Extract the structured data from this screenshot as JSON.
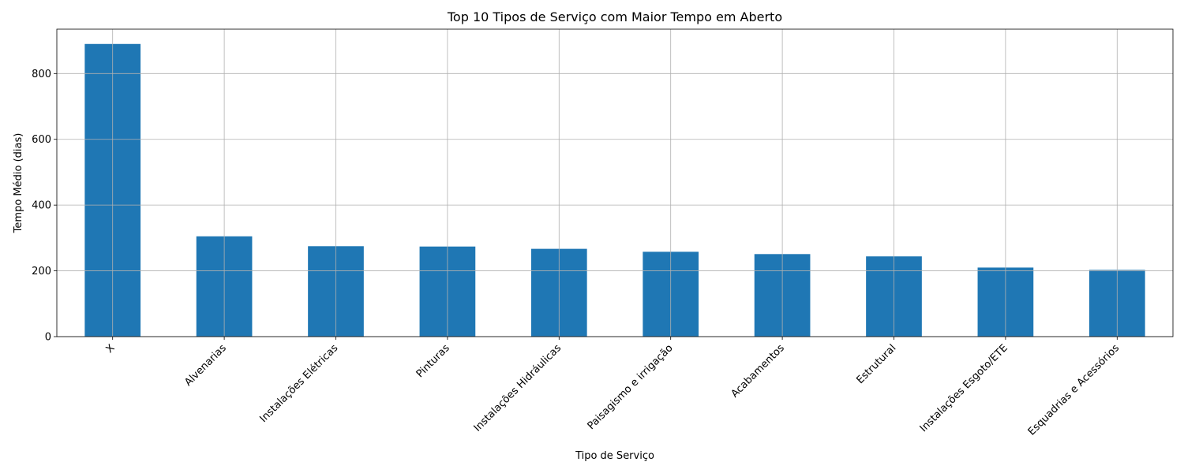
{
  "chart_data": {
    "type": "bar",
    "title": "Top 10 Tipos de Serviço com Maior Tempo em Aberto",
    "xlabel": "Tipo de Serviço",
    "ylabel": "Tempo Médio (dias)",
    "categories": [
      "X",
      "Alvenarias",
      "Instalações Elétricas",
      "Pinturas",
      "Instalações Hidráulicas",
      "Paisagismo e irrigação",
      "Acabamentos",
      "Estrutural",
      "Instalações Esgoto/ETE",
      "Esquadrias e Acessórios"
    ],
    "values": [
      890,
      305,
      275,
      274,
      267,
      258,
      251,
      244,
      210,
      203
    ],
    "ylim": [
      0,
      935
    ],
    "yticks": [
      0,
      200,
      400,
      600,
      800
    ],
    "grid": true,
    "legend": "none",
    "bar_color": "#1f77b4"
  }
}
